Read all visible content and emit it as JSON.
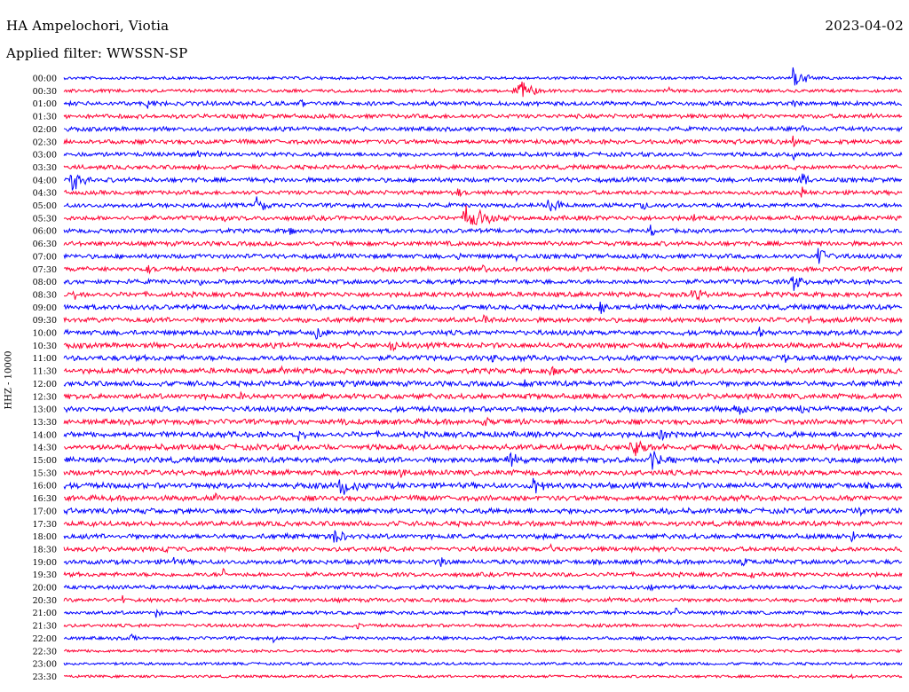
{
  "header": {
    "station": "HA Ampelochori, Viotia",
    "date": "2023-04-02",
    "filter": "Applied filter: WWSSN-SP"
  },
  "channel_label": "HHZ - 10000",
  "colors": {
    "blue": "#0000ff",
    "red": "#ff0033"
  },
  "chart_data": {
    "type": "helicorder",
    "title": "HA Ampelochori, Viotia",
    "subtitle": "Applied filter: WWSSN-SP",
    "date": "2023-04-02",
    "ylabel": "HHZ - 10000",
    "row_interval_minutes": 30,
    "row_colors": [
      "blue",
      "red"
    ],
    "rows": [
      {
        "time": "00:00",
        "level": 0.1,
        "events": [
          {
            "pos": 0.87,
            "amp": 0.9,
            "dur": 0.025
          }
        ]
      },
      {
        "time": "00:30",
        "level": 0.15,
        "events": [
          {
            "pos": 0.54,
            "amp": 0.9,
            "dur": 0.035
          },
          {
            "pos": 0.72,
            "amp": 0.5,
            "dur": 0.01
          }
        ]
      },
      {
        "time": "01:00",
        "level": 0.3,
        "events": [
          {
            "pos": 0.1,
            "amp": 0.4,
            "dur": 0.02
          },
          {
            "pos": 0.28,
            "amp": 0.4,
            "dur": 0.02
          },
          {
            "pos": 0.87,
            "amp": 0.5,
            "dur": 0.01
          }
        ]
      },
      {
        "time": "01:30",
        "level": 0.3,
        "events": [
          {
            "pos": 0.96,
            "amp": 0.3,
            "dur": 0.02
          }
        ]
      },
      {
        "time": "02:00",
        "level": 0.3,
        "events": [
          {
            "pos": 0.88,
            "amp": 0.8,
            "dur": 0.004
          }
        ]
      },
      {
        "time": "02:30",
        "level": 0.35,
        "events": [
          {
            "pos": 0.87,
            "amp": 0.7,
            "dur": 0.005
          }
        ]
      },
      {
        "time": "03:00",
        "level": 0.3,
        "events": [
          {
            "pos": 0.16,
            "amp": 0.5,
            "dur": 0.005
          },
          {
            "pos": 0.87,
            "amp": 0.9,
            "dur": 0.005
          }
        ]
      },
      {
        "time": "03:30",
        "level": 0.3,
        "events": [
          {
            "pos": 0.16,
            "amp": 0.5,
            "dur": 0.005
          },
          {
            "pos": 0.87,
            "amp": 0.9,
            "dur": 0.008
          }
        ]
      },
      {
        "time": "04:00",
        "level": 0.35,
        "events": [
          {
            "pos": 0.01,
            "amp": 1.0,
            "dur": 0.025
          },
          {
            "pos": 0.88,
            "amp": 0.9,
            "dur": 0.015
          }
        ]
      },
      {
        "time": "04:30",
        "level": 0.3,
        "events": [
          {
            "pos": 0.47,
            "amp": 0.4,
            "dur": 0.01
          },
          {
            "pos": 0.88,
            "amp": 0.8,
            "dur": 0.005
          }
        ]
      },
      {
        "time": "05:00",
        "level": 0.3,
        "events": [
          {
            "pos": 0.23,
            "amp": 0.9,
            "dur": 0.02
          },
          {
            "pos": 0.58,
            "amp": 0.9,
            "dur": 0.025
          },
          {
            "pos": 0.69,
            "amp": 0.5,
            "dur": 0.01
          }
        ]
      },
      {
        "time": "05:30",
        "level": 0.35,
        "events": [
          {
            "pos": 0.19,
            "amp": 0.6,
            "dur": 0.01
          },
          {
            "pos": 0.48,
            "amp": 1.0,
            "dur": 0.05
          },
          {
            "pos": 0.75,
            "amp": 0.7,
            "dur": 0.005
          }
        ]
      },
      {
        "time": "06:00",
        "level": 0.3,
        "events": [
          {
            "pos": 0.27,
            "amp": 0.5,
            "dur": 0.01
          },
          {
            "pos": 0.7,
            "amp": 0.6,
            "dur": 0.01
          }
        ]
      },
      {
        "time": "06:30",
        "level": 0.35,
        "events": [
          {
            "pos": 0.89,
            "amp": 0.5,
            "dur": 0.01
          }
        ]
      },
      {
        "time": "07:00",
        "level": 0.35,
        "events": [
          {
            "pos": 0.47,
            "amp": 0.5,
            "dur": 0.01
          },
          {
            "pos": 0.54,
            "amp": 0.5,
            "dur": 0.01
          },
          {
            "pos": 0.9,
            "amp": 0.9,
            "dur": 0.02
          }
        ]
      },
      {
        "time": "07:30",
        "level": 0.35,
        "events": [
          {
            "pos": 0.1,
            "amp": 0.4,
            "dur": 0.01
          },
          {
            "pos": 0.5,
            "amp": 0.5,
            "dur": 0.01
          }
        ]
      },
      {
        "time": "08:00",
        "level": 0.35,
        "events": [
          {
            "pos": 0.16,
            "amp": 0.4,
            "dur": 0.02
          },
          {
            "pos": 0.57,
            "amp": 0.5,
            "dur": 0.01
          },
          {
            "pos": 0.87,
            "amp": 0.9,
            "dur": 0.02
          }
        ]
      },
      {
        "time": "08:30",
        "level": 0.4,
        "events": [
          {
            "pos": 0.01,
            "amp": 0.6,
            "dur": 0.02
          },
          {
            "pos": 0.75,
            "amp": 0.7,
            "dur": 0.03
          }
        ]
      },
      {
        "time": "09:00",
        "level": 0.4,
        "events": [
          {
            "pos": 0.3,
            "amp": 0.5,
            "dur": 0.02
          },
          {
            "pos": 0.64,
            "amp": 0.8,
            "dur": 0.01
          }
        ]
      },
      {
        "time": "09:30",
        "level": 0.4,
        "events": [
          {
            "pos": 0.5,
            "amp": 0.6,
            "dur": 0.02
          },
          {
            "pos": 0.89,
            "amp": 0.5,
            "dur": 0.01
          }
        ]
      },
      {
        "time": "10:00",
        "level": 0.4,
        "events": [
          {
            "pos": 0.3,
            "amp": 0.7,
            "dur": 0.02
          },
          {
            "pos": 0.83,
            "amp": 0.6,
            "dur": 0.01
          },
          {
            "pos": 0.94,
            "amp": 0.6,
            "dur": 0.01
          }
        ]
      },
      {
        "time": "10:30",
        "level": 0.45,
        "events": [
          {
            "pos": 0.39,
            "amp": 0.6,
            "dur": 0.02
          },
          {
            "pos": 0.77,
            "amp": 0.5,
            "dur": 0.01
          }
        ]
      },
      {
        "time": "11:00",
        "level": 0.45,
        "events": [
          {
            "pos": 0.51,
            "amp": 0.5,
            "dur": 0.02
          },
          {
            "pos": 0.86,
            "amp": 0.5,
            "dur": 0.02
          }
        ]
      },
      {
        "time": "11:30",
        "level": 0.45,
        "events": [
          {
            "pos": 0.26,
            "amp": 0.5,
            "dur": 0.01
          },
          {
            "pos": 0.58,
            "amp": 0.5,
            "dur": 0.02
          }
        ]
      },
      {
        "time": "12:00",
        "level": 0.45,
        "events": [
          {
            "pos": 0.33,
            "amp": 0.4,
            "dur": 0.02
          },
          {
            "pos": 0.55,
            "amp": 0.5,
            "dur": 0.02
          }
        ]
      },
      {
        "time": "12:30",
        "level": 0.45,
        "events": [
          {
            "pos": 0.21,
            "amp": 0.5,
            "dur": 0.01
          },
          {
            "pos": 0.72,
            "amp": 0.5,
            "dur": 0.01
          }
        ]
      },
      {
        "time": "13:00",
        "level": 0.45,
        "events": [
          {
            "pos": 0.8,
            "amp": 0.6,
            "dur": 0.03
          },
          {
            "pos": 0.88,
            "amp": 0.6,
            "dur": 0.01
          }
        ]
      },
      {
        "time": "13:30",
        "level": 0.45,
        "events": [
          {
            "pos": 0.33,
            "amp": 0.5,
            "dur": 0.02
          },
          {
            "pos": 0.5,
            "amp": 0.5,
            "dur": 0.02
          }
        ]
      },
      {
        "time": "14:00",
        "level": 0.5,
        "events": [
          {
            "pos": 0.28,
            "amp": 0.6,
            "dur": 0.02
          },
          {
            "pos": 0.71,
            "amp": 0.7,
            "dur": 0.02
          }
        ]
      },
      {
        "time": "14:30",
        "level": 0.5,
        "events": [
          {
            "pos": 0.68,
            "amp": 0.8,
            "dur": 0.03
          },
          {
            "pos": 0.97,
            "amp": 0.5,
            "dur": 0.01
          }
        ]
      },
      {
        "time": "15:00",
        "level": 0.5,
        "events": [
          {
            "pos": 0.53,
            "amp": 0.9,
            "dur": 0.025
          },
          {
            "pos": 0.7,
            "amp": 1.0,
            "dur": 0.02
          }
        ]
      },
      {
        "time": "15:30",
        "level": 0.45,
        "events": [
          {
            "pos": 0.4,
            "amp": 0.5,
            "dur": 0.02
          }
        ]
      },
      {
        "time": "16:00",
        "level": 0.5,
        "events": [
          {
            "pos": 0.33,
            "amp": 1.0,
            "dur": 0.035
          },
          {
            "pos": 0.56,
            "amp": 0.9,
            "dur": 0.025
          }
        ]
      },
      {
        "time": "16:30",
        "level": 0.45,
        "events": [
          {
            "pos": 0.18,
            "amp": 0.4,
            "dur": 0.02
          }
        ]
      },
      {
        "time": "17:00",
        "level": 0.45,
        "events": [
          {
            "pos": 0.27,
            "amp": 0.5,
            "dur": 0.01
          },
          {
            "pos": 0.72,
            "amp": 0.5,
            "dur": 0.01
          },
          {
            "pos": 0.95,
            "amp": 0.5,
            "dur": 0.01
          }
        ]
      },
      {
        "time": "17:30",
        "level": 0.4,
        "events": [
          {
            "pos": 0.4,
            "amp": 0.5,
            "dur": 0.01
          }
        ]
      },
      {
        "time": "18:00",
        "level": 0.4,
        "events": [
          {
            "pos": 0.32,
            "amp": 0.7,
            "dur": 0.03
          },
          {
            "pos": 0.94,
            "amp": 0.6,
            "dur": 0.01
          }
        ]
      },
      {
        "time": "18:30",
        "level": 0.35,
        "events": [
          {
            "pos": 0.12,
            "amp": 0.4,
            "dur": 0.01
          },
          {
            "pos": 0.58,
            "amp": 0.4,
            "dur": 0.02
          }
        ]
      },
      {
        "time": "19:00",
        "level": 0.35,
        "events": [
          {
            "pos": 0.13,
            "amp": 0.5,
            "dur": 0.01
          },
          {
            "pos": 0.45,
            "amp": 0.6,
            "dur": 0.01
          },
          {
            "pos": 0.81,
            "amp": 0.6,
            "dur": 0.01
          }
        ]
      },
      {
        "time": "19:30",
        "level": 0.3,
        "events": [
          {
            "pos": 0.19,
            "amp": 0.5,
            "dur": 0.01
          },
          {
            "pos": 0.82,
            "amp": 0.4,
            "dur": 0.01
          }
        ]
      },
      {
        "time": "20:00",
        "level": 0.25,
        "events": [
          {
            "pos": 0.07,
            "amp": 0.4,
            "dur": 0.01
          },
          {
            "pos": 0.7,
            "amp": 0.4,
            "dur": 0.01
          }
        ]
      },
      {
        "time": "20:30",
        "level": 0.25,
        "events": [
          {
            "pos": 0.07,
            "amp": 0.4,
            "dur": 0.01
          },
          {
            "pos": 0.65,
            "amp": 0.4,
            "dur": 0.02
          }
        ]
      },
      {
        "time": "21:00",
        "level": 0.2,
        "events": [
          {
            "pos": 0.11,
            "amp": 0.5,
            "dur": 0.01
          },
          {
            "pos": 0.73,
            "amp": 0.5,
            "dur": 0.005
          },
          {
            "pos": 0.95,
            "amp": 0.4,
            "dur": 0.005
          }
        ]
      },
      {
        "time": "21:30",
        "level": 0.15,
        "events": [
          {
            "pos": 0.35,
            "amp": 0.4,
            "dur": 0.005
          }
        ]
      },
      {
        "time": "22:00",
        "level": 0.15,
        "events": [
          {
            "pos": 0.08,
            "amp": 0.4,
            "dur": 0.01
          },
          {
            "pos": 0.25,
            "amp": 0.4,
            "dur": 0.01
          },
          {
            "pos": 0.7,
            "amp": 0.6,
            "dur": 0.01
          }
        ]
      },
      {
        "time": "22:30",
        "level": 0.1,
        "events": []
      },
      {
        "time": "23:00",
        "level": 0.08,
        "events": [
          {
            "pos": 0.71,
            "amp": 0.3,
            "dur": 0.005
          }
        ]
      },
      {
        "time": "23:30",
        "level": 0.06,
        "events": [
          {
            "pos": 0.58,
            "amp": 0.3,
            "dur": 0.003
          },
          {
            "pos": 0.94,
            "amp": 0.3,
            "dur": 0.003
          }
        ]
      }
    ]
  }
}
